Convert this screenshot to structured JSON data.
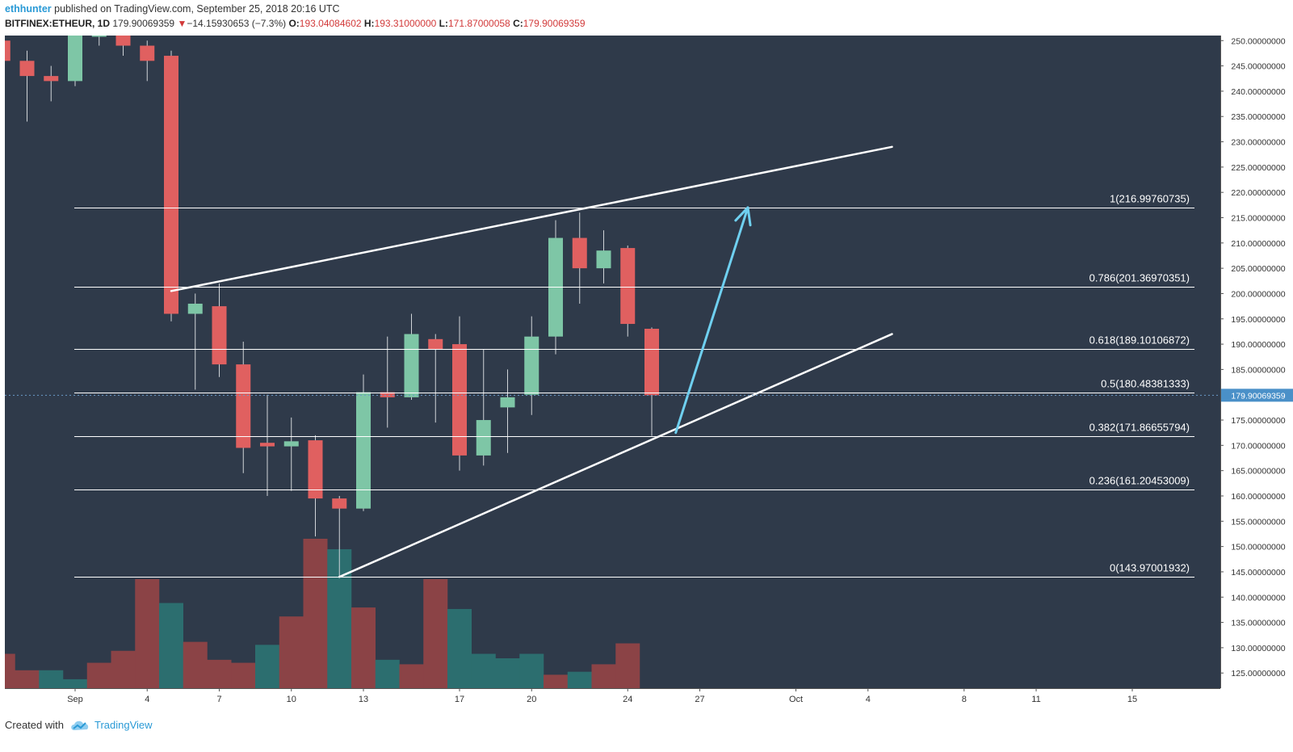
{
  "header": {
    "author": "ethhunter",
    "published_text": "published on TradingView.com, September 25, 2018 20:16 UTC",
    "symbol": "BITFINEX:ETHEUR, 1D",
    "last": "179.90069359",
    "change_arrow": "▼",
    "change": "−14.15930653 (−7.3%)",
    "o_label": "O:",
    "o_value": "193.04084602",
    "h_label": "H:",
    "h_value": "193.31000000",
    "l_label": "L:",
    "l_value": "171.87000058",
    "c_label": "C:",
    "c_value": "179.90069359"
  },
  "footer": {
    "created_with": "Created with",
    "brand": "TradingView"
  },
  "colors": {
    "background": "#2f3a4a",
    "up": "#7ec6a6",
    "down": "#e06060",
    "volume_up": "#2c6e6f",
    "volume_down": "#8b4346",
    "fib_line": "#ffffff",
    "trend_line": "#ffffff",
    "arrow": "#6fd0f0",
    "price_label_bg": "#4a90c8"
  },
  "chart_data": {
    "type": "candlestick",
    "ylim": [
      122,
      251
    ],
    "y_ticks": [
      "250.00000000",
      "245.00000000",
      "240.00000000",
      "235.00000000",
      "230.00000000",
      "225.00000000",
      "220.00000000",
      "215.00000000",
      "210.00000000",
      "205.00000000",
      "200.00000000",
      "195.00000000",
      "190.00000000",
      "185.00000000",
      "180.00000000",
      "175.00000000",
      "170.00000000",
      "165.00000000",
      "160.00000000",
      "155.00000000",
      "150.00000000",
      "145.00000000",
      "140.00000000",
      "135.00000000",
      "130.00000000",
      "125.00000000"
    ],
    "x_ticks": [
      {
        "label": "Sep",
        "day": 1
      },
      {
        "label": "4",
        "day": 4
      },
      {
        "label": "7",
        "day": 7
      },
      {
        "label": "10",
        "day": 10
      },
      {
        "label": "13",
        "day": 13
      },
      {
        "label": "17",
        "day": 17
      },
      {
        "label": "20",
        "day": 20
      },
      {
        "label": "24",
        "day": 24
      },
      {
        "label": "27",
        "day": 27
      },
      {
        "label": "Oct",
        "day": 31
      },
      {
        "label": "4",
        "day": 34
      },
      {
        "label": "8",
        "day": 38
      },
      {
        "label": "11",
        "day": 41
      },
      {
        "label": "15",
        "day": 45
      }
    ],
    "candles": [
      {
        "day": -2,
        "o": 250,
        "h": 252,
        "c": 246,
        "l": 244
      },
      {
        "day": -1,
        "o": 246,
        "h": 248,
        "c": 243,
        "l": 234
      },
      {
        "day": 0,
        "o": 243,
        "h": 245,
        "c": 242,
        "l": 238
      },
      {
        "day": 1,
        "o": 242,
        "h": 252,
        "c": 251,
        "l": 241
      },
      {
        "day": 2,
        "o": 251,
        "h": 254,
        "c": 251,
        "l": 249
      },
      {
        "day": 3,
        "o": 251,
        "h": 252,
        "c": 249,
        "l": 247
      },
      {
        "day": 4,
        "o": 249,
        "h": 250,
        "c": 246,
        "l": 242
      },
      {
        "day": 5,
        "o": 247,
        "h": 248,
        "c": 196,
        "l": 194.5
      },
      {
        "day": 6,
        "o": 196,
        "h": 200,
        "c": 198,
        "l": 181
      },
      {
        "day": 7,
        "o": 197.5,
        "h": 202,
        "c": 186,
        "l": 183.5
      },
      {
        "day": 8,
        "o": 186,
        "h": 190.5,
        "c": 169.5,
        "l": 164.5
      },
      {
        "day": 9,
        "o": 170.5,
        "h": 180,
        "c": 169.8,
        "l": 160
      },
      {
        "day": 10,
        "o": 169.8,
        "h": 175.5,
        "c": 170.8,
        "l": 161
      },
      {
        "day": 11,
        "o": 171,
        "h": 172,
        "c": 159.5,
        "l": 152
      },
      {
        "day": 12,
        "o": 159.5,
        "h": 160,
        "c": 157.5,
        "l": 144
      },
      {
        "day": 13,
        "o": 157.5,
        "h": 184,
        "c": 180.5,
        "l": 157
      },
      {
        "day": 14,
        "o": 180.5,
        "h": 191.5,
        "c": 179.5,
        "l": 173.5
      },
      {
        "day": 15,
        "o": 179.5,
        "h": 196,
        "c": 192,
        "l": 179
      },
      {
        "day": 16,
        "o": 191,
        "h": 192,
        "c": 189,
        "l": 174.5
      },
      {
        "day": 17,
        "o": 190,
        "h": 195.5,
        "c": 168,
        "l": 165
      },
      {
        "day": 18,
        "o": 168,
        "h": 189,
        "c": 175,
        "l": 166
      },
      {
        "day": 19,
        "o": 177.5,
        "h": 185,
        "c": 179.5,
        "l": 168.5
      },
      {
        "day": 20,
        "o": 180,
        "h": 195.5,
        "c": 191.5,
        "l": 176
      },
      {
        "day": 21,
        "o": 191.5,
        "h": 214.5,
        "c": 211,
        "l": 188
      },
      {
        "day": 22,
        "o": 211,
        "h": 216,
        "c": 205,
        "l": 198
      },
      {
        "day": 23,
        "o": 205,
        "h": 212.5,
        "c": 208.5,
        "l": 202
      },
      {
        "day": 24,
        "o": 209,
        "h": 209.5,
        "c": 194,
        "l": 191.5
      },
      {
        "day": 25,
        "o": 193.04,
        "h": 193.31,
        "c": 179.9,
        "l": 171.87
      }
    ],
    "volumes": [
      {
        "day": -3,
        "v": 0.18,
        "up": false
      },
      {
        "day": -2,
        "v": 0.23,
        "up": false
      },
      {
        "day": -1,
        "v": 0.12,
        "up": false
      },
      {
        "day": 0,
        "v": 0.12,
        "up": true
      },
      {
        "day": 1,
        "v": 0.06,
        "up": true
      },
      {
        "day": 2,
        "v": 0.17,
        "up": false
      },
      {
        "day": 3,
        "v": 0.25,
        "up": false
      },
      {
        "day": 4,
        "v": 0.73,
        "up": false
      },
      {
        "day": 5,
        "v": 0.57,
        "up": true
      },
      {
        "day": 6,
        "v": 0.31,
        "up": false
      },
      {
        "day": 7,
        "v": 0.19,
        "up": false
      },
      {
        "day": 8,
        "v": 0.17,
        "up": false
      },
      {
        "day": 9,
        "v": 0.29,
        "up": true
      },
      {
        "day": 10,
        "v": 0.48,
        "up": false
      },
      {
        "day": 11,
        "v": 1.0,
        "up": false
      },
      {
        "day": 12,
        "v": 0.93,
        "up": true
      },
      {
        "day": 13,
        "v": 0.54,
        "up": false
      },
      {
        "day": 14,
        "v": 0.19,
        "up": true
      },
      {
        "day": 15,
        "v": 0.16,
        "up": false
      },
      {
        "day": 16,
        "v": 0.73,
        "up": false
      },
      {
        "day": 17,
        "v": 0.53,
        "up": true
      },
      {
        "day": 18,
        "v": 0.23,
        "up": true
      },
      {
        "day": 19,
        "v": 0.2,
        "up": true
      },
      {
        "day": 20,
        "v": 0.23,
        "up": true
      },
      {
        "day": 21,
        "v": 0.09,
        "up": false
      },
      {
        "day": 22,
        "v": 0.11,
        "up": true
      },
      {
        "day": 23,
        "v": 0.16,
        "up": false
      },
      {
        "day": 24,
        "v": 0.3,
        "up": false
      }
    ],
    "fib_levels": [
      {
        "label": "1(216.99760735)",
        "price": 216.9976
      },
      {
        "label": "0.786(201.36970351)",
        "price": 201.3697
      },
      {
        "label": "0.618(189.10106872)",
        "price": 189.1011
      },
      {
        "label": "0.5(180.48381333)",
        "price": 180.4838
      },
      {
        "label": "0.382(171.86655794)",
        "price": 171.8666
      },
      {
        "label": "0.236(161.20453009)",
        "price": 161.2045
      },
      {
        "label": "0(143.97001932)",
        "price": 143.97
      }
    ],
    "fib_start_day": 1,
    "current_price": 179.90069359,
    "current_price_label": "179.90069359",
    "trend_lines": [
      {
        "from": {
          "day": 5,
          "price": 200.5
        },
        "to": {
          "day": 35,
          "price": 229
        }
      },
      {
        "from": {
          "day": 12,
          "price": 144
        },
        "to": {
          "day": 35,
          "price": 192
        }
      }
    ],
    "projection_arrow": {
      "from": {
        "day": 26,
        "price": 172.5
      },
      "to": {
        "day": 29,
        "price": 217
      }
    }
  }
}
